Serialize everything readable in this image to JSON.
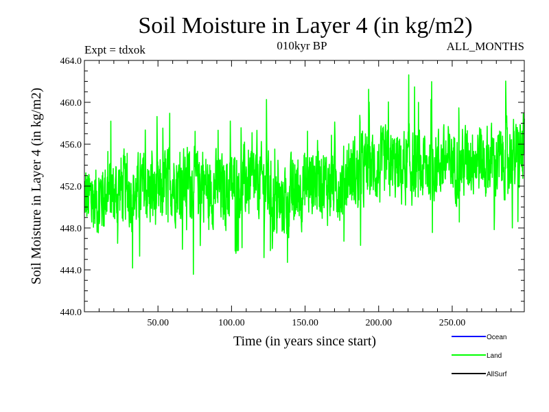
{
  "chart_data": {
    "type": "line",
    "title": "Soil Moisture in Layer 4 (in kg/m2)",
    "subtitle_left": "Expt = tdxok",
    "subtitle_center": "010kyr BP",
    "subtitle_right": "ALL_MONTHS",
    "xlabel": "Time (in years since start)",
    "ylabel": "Soil Moisture in Layer 4 (in kg/m2)",
    "xlim": [
      0,
      299
    ],
    "ylim": [
      440.0,
      464.0
    ],
    "x_ticks": [
      50,
      100,
      150,
      200,
      250
    ],
    "x_tick_labels": [
      "50.00",
      "100.00",
      "150.00",
      "200.00",
      "250.00"
    ],
    "y_ticks": [
      440,
      444,
      448,
      452,
      456,
      460,
      464
    ],
    "y_tick_labels": [
      "440.0",
      "444.0",
      "448.0",
      "452.0",
      "456.0",
      "460.0",
      "464.0"
    ],
    "legend_position": "bottom-right",
    "series": [
      {
        "name": "Land",
        "color": "#00ff00",
        "x": [
          0,
          5,
          10,
          15,
          20,
          25,
          30,
          35,
          40,
          45,
          50,
          55,
          60,
          65,
          70,
          75,
          80,
          85,
          90,
          95,
          100,
          105,
          110,
          115,
          120,
          125,
          130,
          135,
          140,
          145,
          150,
          155,
          160,
          165,
          170,
          175,
          180,
          185,
          190,
          195,
          200,
          205,
          210,
          215,
          220,
          225,
          230,
          235,
          240,
          245,
          250,
          255,
          260,
          265,
          270,
          275,
          280,
          285,
          290,
          295,
          299
        ],
        "values": [
          451.0,
          450.5,
          451.0,
          451.5,
          451.0,
          452.0,
          451.5,
          451.0,
          452.0,
          451.5,
          451.0,
          452.0,
          452.5,
          452.0,
          452.5,
          452.0,
          452.5,
          451.5,
          452.0,
          451.5,
          452.0,
          452.0,
          452.5,
          452.0,
          452.5,
          452.0,
          450.0,
          450.5,
          451.0,
          451.5,
          452.0,
          452.5,
          453.0,
          452.0,
          452.5,
          452.0,
          453.5,
          453.0,
          453.5,
          454.0,
          453.5,
          454.0,
          454.0,
          453.5,
          454.0,
          453.5,
          453.5,
          454.0,
          454.5,
          454.0,
          454.5,
          454.0,
          454.5,
          455.0,
          454.5,
          454.5,
          454.0,
          454.5,
          455.0,
          454.5,
          455.5
        ],
        "min": 441.2,
        "max": 463.3
      },
      {
        "name": "Ocean",
        "color": "#0000ff"
      },
      {
        "name": "AllSurf",
        "color": "#000000"
      }
    ]
  }
}
